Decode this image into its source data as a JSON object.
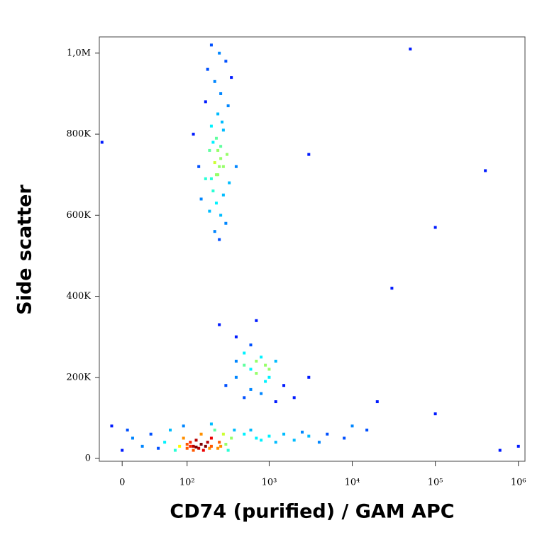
{
  "chart_data": {
    "type": "scatter",
    "x_label": "CD74 (purified) / GAM APC",
    "y_label": "Side scatter",
    "x_scale": "biexponential",
    "xlim": [
      -23,
      1200000
    ],
    "ylim": [
      -7000,
      1040000
    ],
    "xticks": [
      {
        "value": 0,
        "label": "0"
      },
      {
        "value": 100,
        "label": "10²"
      },
      {
        "value": 1000,
        "label": "10³"
      },
      {
        "value": 10000,
        "label": "10⁴"
      },
      {
        "value": 100000,
        "label": "10⁵"
      },
      {
        "value": 1000000,
        "label": "10⁶"
      }
    ],
    "yticks": [
      {
        "value": 0,
        "label": "0"
      },
      {
        "value": 200000,
        "label": "200K"
      },
      {
        "value": 400000,
        "label": "400K"
      },
      {
        "value": 600000,
        "label": "600K"
      },
      {
        "value": 800000,
        "label": "800K"
      },
      {
        "value": 1000000,
        "label": "1,0M"
      }
    ],
    "x": [
      200,
      250,
      180,
      300,
      220,
      260,
      170,
      320,
      240,
      200,
      280,
      230,
      260,
      190,
      310,
      220,
      250,
      240,
      170,
      330,
      210,
      280,
      230,
      190,
      260,
      300,
      220,
      250,
      150,
      400,
      120,
      350,
      140,
      270,
      240,
      210,
      260,
      230,
      200,
      280,
      400,
      600,
      800,
      500,
      1000,
      700,
      400,
      900,
      1500,
      600,
      300,
      1200,
      800,
      2000,
      500,
      700,
      1000,
      600,
      900,
      400,
      3000,
      250,
      700,
      500,
      1200,
      0,
      10,
      20,
      30,
      40,
      50,
      60,
      70,
      80,
      90,
      100,
      100,
      110,
      120,
      120,
      130,
      140,
      150,
      150,
      160,
      170,
      180,
      190,
      200,
      200,
      220,
      240,
      250,
      260,
      280,
      300,
      320,
      350,
      380,
      -10,
      5,
      90,
      200,
      110,
      130,
      500,
      700,
      1000,
      1500,
      2000,
      3000,
      5000,
      8000,
      600,
      1200,
      2500,
      4000,
      10000,
      15000,
      800,
      400000,
      100000,
      30000,
      100000,
      3000,
      -20,
      20000,
      50000,
      1000000,
      600000
    ],
    "values": [
      1020000,
      1000000,
      960000,
      980000,
      930000,
      900000,
      880000,
      870000,
      850000,
      820000,
      810000,
      790000,
      770000,
      760000,
      750000,
      730000,
      720000,
      700000,
      690000,
      680000,
      660000,
      650000,
      630000,
      610000,
      600000,
      580000,
      560000,
      540000,
      640000,
      720000,
      800000,
      940000,
      720000,
      830000,
      760000,
      780000,
      740000,
      700000,
      690000,
      720000,
      300000,
      280000,
      250000,
      230000,
      220000,
      210000,
      200000,
      190000,
      180000,
      170000,
      180000,
      240000,
      160000,
      150000,
      260000,
      240000,
      200000,
      220000,
      230000,
      240000,
      200000,
      330000,
      340000,
      150000,
      140000,
      20000,
      50000,
      30000,
      60000,
      25000,
      40000,
      70000,
      20000,
      30000,
      50000,
      25000,
      35000,
      40000,
      20000,
      30000,
      45000,
      25000,
      35000,
      60000,
      20000,
      30000,
      40000,
      25000,
      30000,
      50000,
      70000,
      25000,
      40000,
      30000,
      60000,
      35000,
      20000,
      50000,
      70000,
      80000,
      70000,
      80000,
      85000,
      30000,
      28000,
      60000,
      50000,
      55000,
      60000,
      45000,
      55000,
      60000,
      50000,
      70000,
      40000,
      65000,
      40000,
      80000,
      70000,
      45000,
      710000,
      570000,
      420000,
      110000,
      750000,
      780000,
      140000,
      1010000,
      30000,
      20000
    ]
  }
}
